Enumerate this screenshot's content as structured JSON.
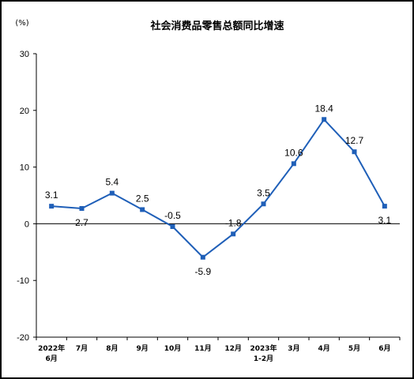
{
  "chart_data": {
    "type": "line",
    "title": "社会消费品零售总额同比增速",
    "unit": "(%)",
    "categories": [
      [
        "2022年",
        "6月"
      ],
      [
        "7月"
      ],
      [
        "8月"
      ],
      [
        "9月"
      ],
      [
        "10月"
      ],
      [
        "11月"
      ],
      [
        "12月"
      ],
      [
        "2023年",
        "1-2月"
      ],
      [
        "3月"
      ],
      [
        "4月"
      ],
      [
        "5月"
      ],
      [
        "6月"
      ]
    ],
    "series": [
      {
        "values": [
          3.1,
          2.7,
          5.4,
          2.5,
          -0.5,
          -5.9,
          -1.8,
          3.5,
          10.6,
          18.4,
          12.7,
          3.1
        ],
        "labels": [
          "3.1",
          "2.7",
          "5.4",
          "2.5",
          "-0.5",
          "-5.9",
          "-1.8",
          "3.5",
          "10.6",
          "18.4",
          "12.7",
          "3.1"
        ],
        "color": "#1F5FB8"
      }
    ],
    "ylim": [
      -20,
      30
    ],
    "yticks": [
      -20,
      -10,
      0,
      10,
      20,
      30
    ],
    "ytick_labels": [
      "-20",
      "-10",
      "0",
      "10",
      "20",
      "30"
    ],
    "grid": false,
    "legend": "none",
    "axis_color": "#000000"
  }
}
